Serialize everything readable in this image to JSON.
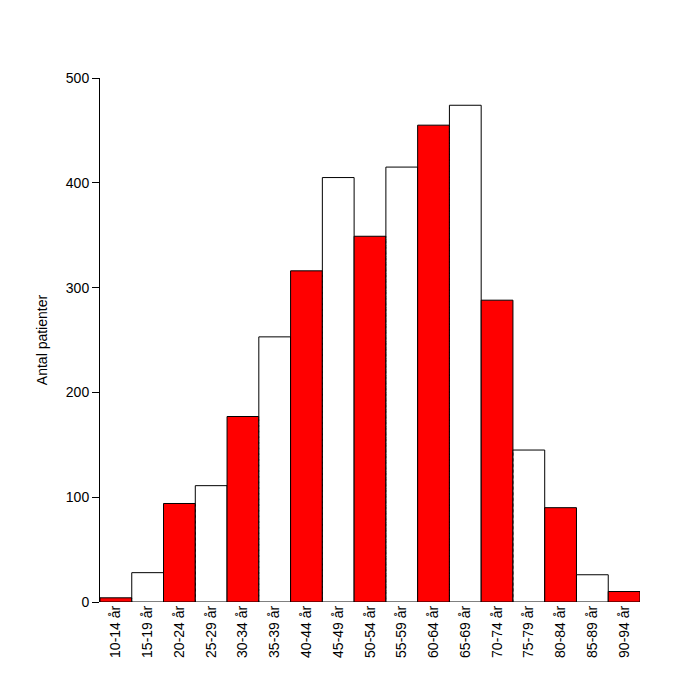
{
  "chart_data": {
    "type": "bar",
    "y_label": "Antal patienter",
    "categories": [
      "10-14 år",
      "15-19 år",
      "20-24 år",
      "25-29 år",
      "30-34 år",
      "35-39 år",
      "40-44 år",
      "45-49 år",
      "50-54 år",
      "55-59 år",
      "60-64 år",
      "65-69 år",
      "70-74 år",
      "75-79 år",
      "80-84 år",
      "85-89 år",
      "90-94 år"
    ],
    "values": [
      4,
      28,
      94,
      111,
      177,
      253,
      316,
      405,
      349,
      415,
      455,
      474,
      288,
      145,
      90,
      26,
      10
    ],
    "colors": [
      "#ff0000",
      "#1a1a80",
      "#ff0000",
      "#1a1a80",
      "#ff0000",
      "#1a1a80",
      "#ff0000",
      "#1a1a80",
      "#ff0000",
      "#1a1a80",
      "#ff0000",
      "#1a1a80",
      "#ff0000",
      "#1a1a80",
      "#ff0000",
      "#1a1a80",
      "#ff0000"
    ],
    "ylim": [
      0,
      500
    ],
    "yticks": [
      0,
      100,
      200,
      300,
      400,
      500
    ],
    "grid": false
  }
}
